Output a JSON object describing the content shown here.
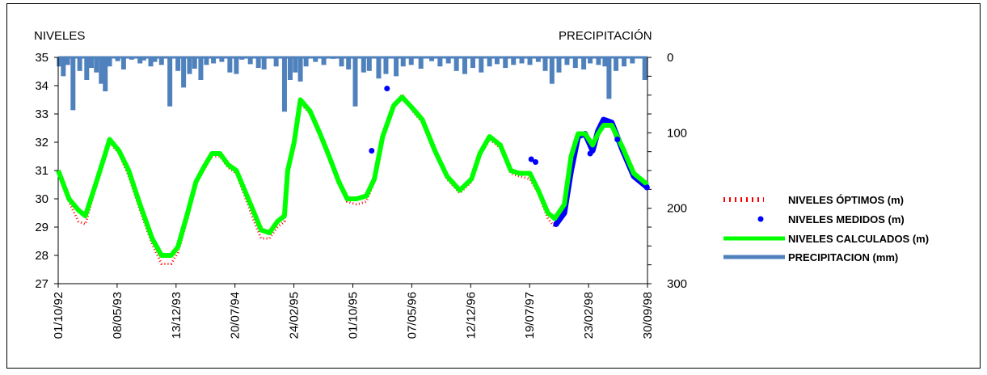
{
  "chart_data": {
    "type": "line",
    "left_axis_title": "NIVELES",
    "right_axis_title": "PRECIPITACIÓN",
    "y_left": {
      "min": 27,
      "max": 35,
      "ticks": [
        27,
        28,
        29,
        30,
        31,
        32,
        33,
        34,
        35
      ]
    },
    "y_right": {
      "min": 0,
      "max": 300,
      "inverted": true,
      "ticks": [
        0,
        100,
        200,
        300
      ]
    },
    "x_range": [
      "1992-10-01",
      "1998-09-30"
    ],
    "x_ticks": [
      {
        "date": "1992-10-01",
        "label": "01/10/92"
      },
      {
        "date": "1993-05-08",
        "label": "08/05/93"
      },
      {
        "date": "1993-12-13",
        "label": "13/12/93"
      },
      {
        "date": "1994-07-20",
        "label": "20/07/94"
      },
      {
        "date": "1995-02-24",
        "label": "24/02/95"
      },
      {
        "date": "1995-10-01",
        "label": "01/10/95"
      },
      {
        "date": "1996-05-07",
        "label": "07/05/96"
      },
      {
        "date": "1996-12-12",
        "label": "12/12/96"
      },
      {
        "date": "1997-07-19",
        "label": "19/07/97"
      },
      {
        "date": "1998-02-23",
        "label": "23/02/98"
      },
      {
        "date": "1998-09-30",
        "label": "30/09/98"
      }
    ],
    "legend": [
      {
        "key": "optimos",
        "label": "NIVELES ÓPTIMOS (m)"
      },
      {
        "key": "medidos",
        "label": "NIVELES MEDIDOS (m)"
      },
      {
        "key": "calculados",
        "label": "NIVELES CALCULADOS (m)"
      },
      {
        "key": "precip",
        "label": "PRECIPITACION (mm)"
      }
    ],
    "colors": {
      "optimos": "#ff0000",
      "medidos": "#0000ff",
      "calculados": "#00ff00",
      "precip": "#4f81bd"
    },
    "series": [
      {
        "key": "calculados",
        "name": "NIVELES CALCULADOS (m)",
        "points": [
          [
            "1992-10-01",
            31.0
          ],
          [
            "1992-11-10",
            30.0
          ],
          [
            "1992-12-15",
            29.6
          ],
          [
            "1993-01-10",
            29.4
          ],
          [
            "1993-02-20",
            30.6
          ],
          [
            "1993-03-25",
            31.6
          ],
          [
            "1993-04-10",
            32.1
          ],
          [
            "1993-05-15",
            31.7
          ],
          [
            "1993-06-20",
            31.0
          ],
          [
            "1993-08-01",
            29.8
          ],
          [
            "1993-09-15",
            28.6
          ],
          [
            "1993-10-20",
            28.0
          ],
          [
            "1993-11-25",
            28.0
          ],
          [
            "1993-12-20",
            28.3
          ],
          [
            "1994-01-25",
            29.5
          ],
          [
            "1994-02-25",
            30.6
          ],
          [
            "1994-03-25",
            31.1
          ],
          [
            "1994-04-25",
            31.6
          ],
          [
            "1994-05-25",
            31.6
          ],
          [
            "1994-06-25",
            31.2
          ],
          [
            "1994-07-25",
            31.0
          ],
          [
            "1994-08-25",
            30.3
          ],
          [
            "1994-09-25",
            29.6
          ],
          [
            "1994-10-25",
            28.9
          ],
          [
            "1994-11-25",
            28.8
          ],
          [
            "1994-12-25",
            29.2
          ],
          [
            "1995-01-20",
            29.4
          ],
          [
            "1995-02-01",
            31.0
          ],
          [
            "1995-02-25",
            32.0
          ],
          [
            "1995-03-20",
            33.5
          ],
          [
            "1995-04-25",
            33.1
          ],
          [
            "1995-06-01",
            32.3
          ],
          [
            "1995-07-05",
            31.5
          ],
          [
            "1995-08-10",
            30.6
          ],
          [
            "1995-09-10",
            30.0
          ],
          [
            "1995-10-15",
            30.0
          ],
          [
            "1995-11-20",
            30.1
          ],
          [
            "1995-12-20",
            30.7
          ],
          [
            "1996-01-20",
            32.2
          ],
          [
            "1996-03-01",
            33.3
          ],
          [
            "1996-04-01",
            33.6
          ],
          [
            "1996-05-10",
            33.2
          ],
          [
            "1996-06-15",
            32.8
          ],
          [
            "1996-08-01",
            31.7
          ],
          [
            "1996-09-15",
            30.8
          ],
          [
            "1996-11-01",
            30.3
          ],
          [
            "1996-12-15",
            30.7
          ],
          [
            "1997-01-15",
            31.6
          ],
          [
            "1997-02-20",
            32.2
          ],
          [
            "1997-04-01",
            31.9
          ],
          [
            "1997-05-10",
            31.0
          ],
          [
            "1997-06-10",
            30.9
          ],
          [
            "1997-07-20",
            30.9
          ],
          [
            "1997-08-20",
            30.3
          ],
          [
            "1997-09-25",
            29.5
          ],
          [
            "1997-10-20",
            29.3
          ],
          [
            "1997-11-25",
            29.8
          ],
          [
            "1997-12-20",
            31.5
          ],
          [
            "1998-01-15",
            32.3
          ],
          [
            "1998-02-10",
            32.3
          ],
          [
            "1998-03-10",
            31.9
          ],
          [
            "1998-03-30",
            32.3
          ],
          [
            "1998-04-20",
            32.6
          ],
          [
            "1998-05-20",
            32.6
          ],
          [
            "1998-06-30",
            31.8
          ],
          [
            "1998-08-10",
            30.9
          ],
          [
            "1998-09-30",
            30.5
          ]
        ]
      },
      {
        "key": "optimos",
        "name": "NIVELES ÓPTIMOS (m)",
        "points": [
          [
            "1992-10-01",
            30.9
          ],
          [
            "1992-11-10",
            29.9
          ],
          [
            "1992-12-15",
            29.2
          ],
          [
            "1993-01-10",
            29.1
          ],
          [
            "1993-02-20",
            30.5
          ],
          [
            "1993-03-25",
            31.5
          ],
          [
            "1993-04-10",
            32.0
          ],
          [
            "1993-05-15",
            31.6
          ],
          [
            "1993-06-20",
            30.8
          ],
          [
            "1993-08-01",
            29.6
          ],
          [
            "1993-09-15",
            28.4
          ],
          [
            "1993-10-20",
            27.7
          ],
          [
            "1993-11-25",
            27.7
          ],
          [
            "1993-12-20",
            28.1
          ],
          [
            "1994-01-25",
            29.3
          ],
          [
            "1994-02-25",
            30.5
          ],
          [
            "1994-03-25",
            31.0
          ],
          [
            "1994-04-25",
            31.5
          ],
          [
            "1994-05-25",
            31.5
          ],
          [
            "1994-06-25",
            31.1
          ],
          [
            "1994-07-25",
            30.9
          ],
          [
            "1994-08-25",
            30.1
          ],
          [
            "1994-09-25",
            29.3
          ],
          [
            "1994-10-25",
            28.6
          ],
          [
            "1994-11-25",
            28.6
          ],
          [
            "1994-12-25",
            29.0
          ],
          [
            "1995-01-20",
            29.2
          ],
          [
            "1995-02-01",
            30.9
          ],
          [
            "1995-02-25",
            31.9
          ],
          [
            "1995-03-20",
            33.4
          ],
          [
            "1995-04-25",
            33.0
          ],
          [
            "1995-06-01",
            32.2
          ],
          [
            "1995-07-05",
            31.4
          ],
          [
            "1995-08-10",
            30.5
          ],
          [
            "1995-09-10",
            29.9
          ],
          [
            "1995-10-15",
            29.8
          ],
          [
            "1995-11-20",
            29.9
          ],
          [
            "1995-12-20",
            30.6
          ],
          [
            "1996-01-20",
            32.1
          ],
          [
            "1996-03-01",
            33.2
          ],
          [
            "1996-04-01",
            33.7
          ],
          [
            "1996-05-10",
            33.1
          ],
          [
            "1996-06-15",
            32.7
          ],
          [
            "1996-08-01",
            31.6
          ],
          [
            "1996-09-15",
            30.7
          ],
          [
            "1996-11-01",
            30.2
          ],
          [
            "1996-12-15",
            30.6
          ],
          [
            "1997-01-15",
            31.5
          ],
          [
            "1997-02-20",
            32.1
          ],
          [
            "1997-04-01",
            31.8
          ],
          [
            "1997-05-10",
            30.9
          ],
          [
            "1997-06-10",
            30.8
          ],
          [
            "1997-07-20",
            30.7
          ],
          [
            "1997-08-20",
            30.2
          ],
          [
            "1997-09-25",
            29.3
          ],
          [
            "1997-10-20",
            29.0
          ]
        ]
      },
      {
        "key": "medidos_line",
        "name": "NIVELES MEDIDOS (m)",
        "points": [
          [
            "1997-10-25",
            29.1
          ],
          [
            "1997-11-25",
            29.5
          ],
          [
            "1997-12-20",
            31.0
          ],
          [
            "1998-01-15",
            32.2
          ],
          [
            "1998-02-10",
            32.3
          ],
          [
            "1998-03-10",
            31.7
          ],
          [
            "1998-03-30",
            32.4
          ],
          [
            "1998-04-20",
            32.8
          ],
          [
            "1998-05-20",
            32.7
          ],
          [
            "1998-06-30",
            31.7
          ],
          [
            "1998-08-10",
            30.8
          ],
          [
            "1998-09-30",
            30.4
          ]
        ]
      }
    ],
    "medidos_points": [
      [
        "1995-12-10",
        31.7
      ],
      [
        "1996-02-05",
        33.9
      ],
      [
        "1997-07-25",
        31.4
      ],
      [
        "1997-08-10",
        31.3
      ],
      [
        "1997-10-25",
        29.1
      ],
      [
        "1998-03-01",
        31.6
      ],
      [
        "1998-06-10",
        32.1
      ],
      [
        "1998-09-28",
        30.4
      ]
    ],
    "precipitation": [
      [
        "1992-10-05",
        12
      ],
      [
        "1992-10-20",
        25
      ],
      [
        "1992-11-05",
        10
      ],
      [
        "1992-11-25",
        70
      ],
      [
        "1992-12-20",
        18
      ],
      [
        "1993-01-15",
        30
      ],
      [
        "1993-02-01",
        14
      ],
      [
        "1993-02-20",
        20
      ],
      [
        "1993-03-10",
        35
      ],
      [
        "1993-03-25",
        45
      ],
      [
        "1993-04-10",
        12
      ],
      [
        "1993-05-10",
        5
      ],
      [
        "1993-06-01",
        16
      ],
      [
        "1993-07-01",
        3
      ],
      [
        "1993-08-01",
        8
      ],
      [
        "1993-08-15",
        4
      ],
      [
        "1993-09-10",
        12
      ],
      [
        "1993-09-25",
        6
      ],
      [
        "1993-10-20",
        10
      ],
      [
        "1993-11-20",
        65
      ],
      [
        "1993-12-20",
        18
      ],
      [
        "1994-01-10",
        40
      ],
      [
        "1994-02-01",
        22
      ],
      [
        "1994-02-20",
        15
      ],
      [
        "1994-03-15",
        30
      ],
      [
        "1994-04-05",
        10
      ],
      [
        "1994-05-01",
        8
      ],
      [
        "1994-06-01",
        6
      ],
      [
        "1994-07-01",
        20
      ],
      [
        "1994-07-25",
        22
      ],
      [
        "1994-08-15",
        3
      ],
      [
        "1994-09-15",
        9
      ],
      [
        "1994-10-15",
        14
      ],
      [
        "1994-11-05",
        16
      ],
      [
        "1994-12-20",
        12
      ],
      [
        "1995-01-20",
        72
      ],
      [
        "1995-02-10",
        30
      ],
      [
        "1995-03-01",
        20
      ],
      [
        "1995-03-20",
        32
      ],
      [
        "1995-04-10",
        12
      ],
      [
        "1995-05-15",
        6
      ],
      [
        "1995-06-15",
        10
      ],
      [
        "1995-07-20",
        2
      ],
      [
        "1995-08-20",
        12
      ],
      [
        "1995-09-15",
        16
      ],
      [
        "1995-10-10",
        65
      ],
      [
        "1995-11-10",
        20
      ],
      [
        "1995-12-01",
        18
      ],
      [
        "1996-01-05",
        28
      ],
      [
        "1996-02-01",
        22
      ],
      [
        "1996-03-10",
        25
      ],
      [
        "1996-04-05",
        12
      ],
      [
        "1996-05-05",
        10
      ],
      [
        "1996-06-10",
        15
      ],
      [
        "1996-07-20",
        5
      ],
      [
        "1996-08-20",
        12
      ],
      [
        "1996-09-20",
        8
      ],
      [
        "1996-10-20",
        18
      ],
      [
        "1996-11-20",
        22
      ],
      [
        "1996-12-20",
        14
      ],
      [
        "1997-01-20",
        20
      ],
      [
        "1997-02-20",
        12
      ],
      [
        "1997-03-20",
        9
      ],
      [
        "1997-04-20",
        14
      ],
      [
        "1997-05-20",
        10
      ],
      [
        "1997-06-20",
        8
      ],
      [
        "1997-07-20",
        10
      ],
      [
        "1997-08-20",
        6
      ],
      [
        "1997-09-15",
        18
      ],
      [
        "1997-10-10",
        35
      ],
      [
        "1997-11-05",
        20
      ],
      [
        "1997-12-05",
        10
      ],
      [
        "1998-01-05",
        14
      ],
      [
        "1998-02-05",
        16
      ],
      [
        "1998-03-01",
        8
      ],
      [
        "1998-04-01",
        10
      ],
      [
        "1998-04-25",
        12
      ],
      [
        "1998-05-10",
        55
      ],
      [
        "1998-06-05",
        18
      ],
      [
        "1998-07-05",
        12
      ],
      [
        "1998-08-05",
        8
      ],
      [
        "1998-09-20",
        30
      ]
    ]
  }
}
